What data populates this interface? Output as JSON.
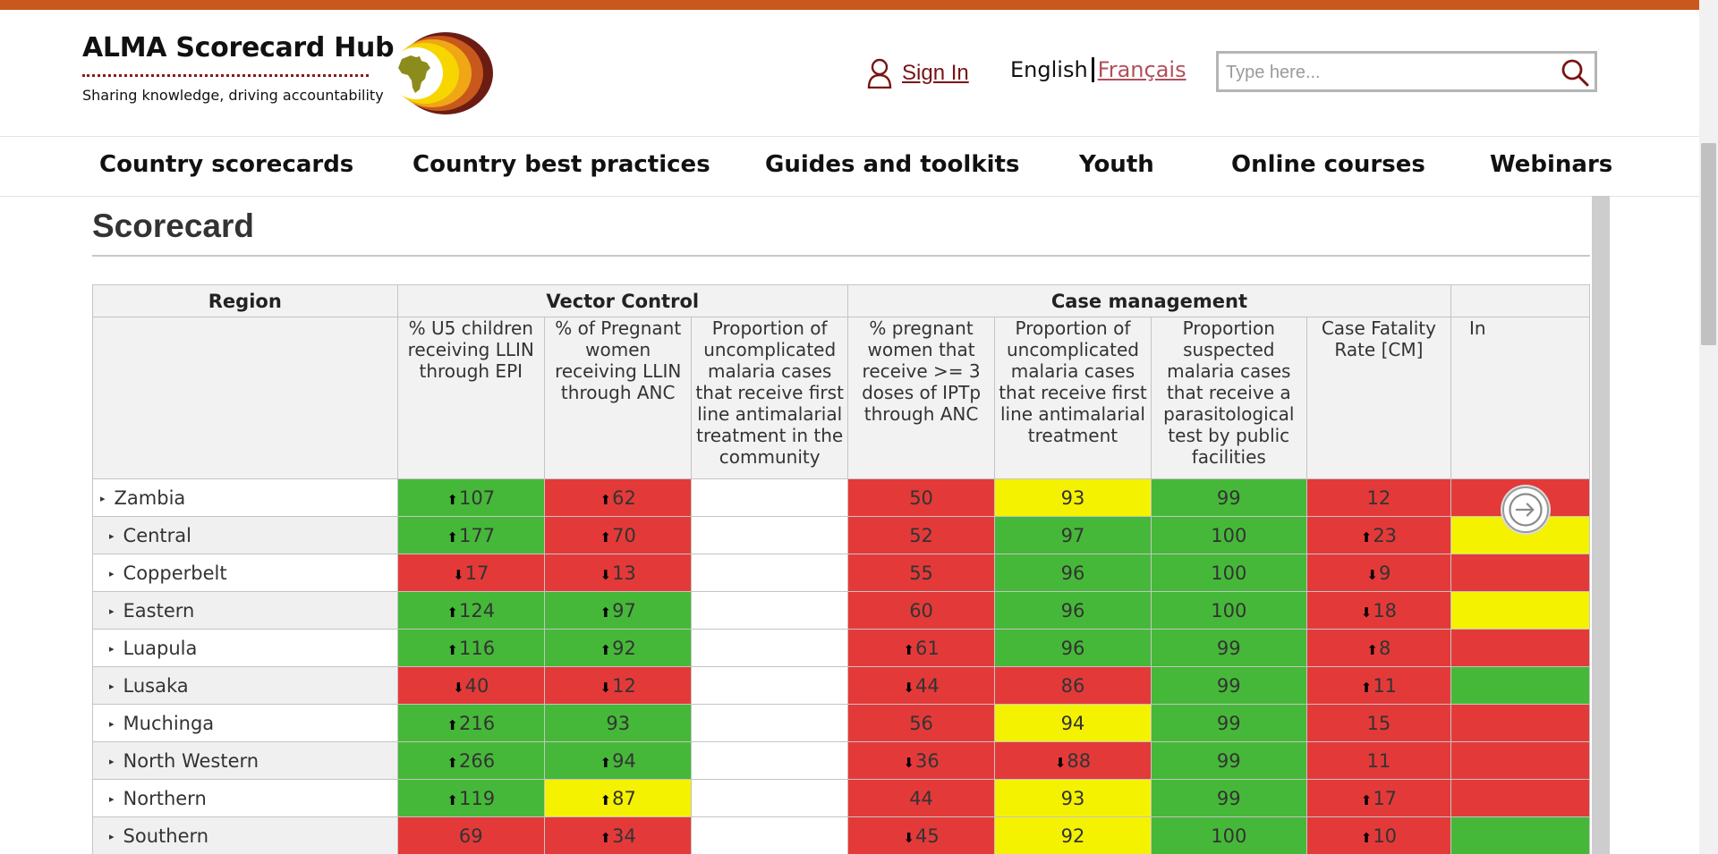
{
  "logo": {
    "title": "ALMA Scorecard Hub",
    "tagline": "Sharing knowledge, driving accountability",
    "ring_colors": [
      "#6b1d14",
      "#c9581d",
      "#f0a716",
      "#f7d600"
    ],
    "africa_color": "#8c8c1e"
  },
  "header": {
    "signin_label": "Sign In",
    "signin_icon": "user-icon",
    "lang_en": "English",
    "lang_fr": "Français",
    "search_placeholder": "Type here...",
    "search_icon": "search-icon"
  },
  "nav": {
    "items": [
      "Country scorecards",
      "Country best practices",
      "Guides and toolkits",
      "Youth",
      "Online courses",
      "Webinars"
    ]
  },
  "page": {
    "title": "Scorecard"
  },
  "scorecard": {
    "region_header": "Region",
    "groups": [
      {
        "label": "Vector Control",
        "span": 3
      },
      {
        "label": "Case management",
        "span": 4
      }
    ],
    "columns": [
      "% U5 children receiving LLIN through EPI",
      "% of Pregnant women receiving LLIN through ANC",
      "Proportion of uncomplicated malaria cases that receive first line antimalarial treatment in the community",
      "% pregnant women that receive >= 3 doses of IPTp through ANC",
      "Proportion of uncomplicated malaria cases that receive first line antimalarial treatment",
      "Proportion suspected malaria cases that receive a parasitological test by public facilities",
      "Case Fatality Rate [CM]",
      "In"
    ],
    "rows": [
      {
        "region": "Zambia",
        "level": 0,
        "cells": [
          {
            "v": "107",
            "c": "green",
            "a": "up"
          },
          {
            "v": "62",
            "c": "red",
            "a": "up"
          },
          {
            "v": "",
            "c": "white",
            "a": ""
          },
          {
            "v": "50",
            "c": "red",
            "a": ""
          },
          {
            "v": "93",
            "c": "yellow",
            "a": ""
          },
          {
            "v": "99",
            "c": "green",
            "a": ""
          },
          {
            "v": "12",
            "c": "red",
            "a": ""
          },
          {
            "v": "",
            "c": "red",
            "a": ""
          }
        ]
      },
      {
        "region": "Central",
        "level": 1,
        "cells": [
          {
            "v": "177",
            "c": "green",
            "a": "up"
          },
          {
            "v": "70",
            "c": "red",
            "a": "up"
          },
          {
            "v": "",
            "c": "white",
            "a": ""
          },
          {
            "v": "52",
            "c": "red",
            "a": ""
          },
          {
            "v": "97",
            "c": "green",
            "a": ""
          },
          {
            "v": "100",
            "c": "green",
            "a": ""
          },
          {
            "v": "23",
            "c": "red",
            "a": "up"
          },
          {
            "v": "",
            "c": "yellow",
            "a": ""
          }
        ]
      },
      {
        "region": "Copperbelt",
        "level": 1,
        "cells": [
          {
            "v": "17",
            "c": "red",
            "a": "down"
          },
          {
            "v": "13",
            "c": "red",
            "a": "down"
          },
          {
            "v": "",
            "c": "white",
            "a": ""
          },
          {
            "v": "55",
            "c": "red",
            "a": ""
          },
          {
            "v": "96",
            "c": "green",
            "a": ""
          },
          {
            "v": "100",
            "c": "green",
            "a": ""
          },
          {
            "v": "9",
            "c": "red",
            "a": "down"
          },
          {
            "v": "",
            "c": "red",
            "a": ""
          }
        ]
      },
      {
        "region": "Eastern",
        "level": 1,
        "cells": [
          {
            "v": "124",
            "c": "green",
            "a": "up"
          },
          {
            "v": "97",
            "c": "green",
            "a": "up"
          },
          {
            "v": "",
            "c": "white",
            "a": ""
          },
          {
            "v": "60",
            "c": "red",
            "a": ""
          },
          {
            "v": "96",
            "c": "green",
            "a": ""
          },
          {
            "v": "100",
            "c": "green",
            "a": ""
          },
          {
            "v": "18",
            "c": "red",
            "a": "down"
          },
          {
            "v": "",
            "c": "yellow",
            "a": ""
          }
        ]
      },
      {
        "region": "Luapula",
        "level": 1,
        "cells": [
          {
            "v": "116",
            "c": "green",
            "a": "up"
          },
          {
            "v": "92",
            "c": "green",
            "a": "up"
          },
          {
            "v": "",
            "c": "white",
            "a": ""
          },
          {
            "v": "61",
            "c": "red",
            "a": "up"
          },
          {
            "v": "96",
            "c": "green",
            "a": ""
          },
          {
            "v": "99",
            "c": "green",
            "a": ""
          },
          {
            "v": "8",
            "c": "red",
            "a": "up"
          },
          {
            "v": "",
            "c": "red",
            "a": ""
          }
        ]
      },
      {
        "region": "Lusaka",
        "level": 1,
        "cells": [
          {
            "v": "40",
            "c": "red",
            "a": "down"
          },
          {
            "v": "12",
            "c": "red",
            "a": "down"
          },
          {
            "v": "",
            "c": "white",
            "a": ""
          },
          {
            "v": "44",
            "c": "red",
            "a": "down"
          },
          {
            "v": "86",
            "c": "red",
            "a": ""
          },
          {
            "v": "99",
            "c": "green",
            "a": ""
          },
          {
            "v": "11",
            "c": "red",
            "a": "up"
          },
          {
            "v": "",
            "c": "green",
            "a": ""
          }
        ]
      },
      {
        "region": "Muchinga",
        "level": 1,
        "cells": [
          {
            "v": "216",
            "c": "green",
            "a": "up"
          },
          {
            "v": "93",
            "c": "green",
            "a": ""
          },
          {
            "v": "",
            "c": "white",
            "a": ""
          },
          {
            "v": "56",
            "c": "red",
            "a": ""
          },
          {
            "v": "94",
            "c": "yellow",
            "a": ""
          },
          {
            "v": "99",
            "c": "green",
            "a": ""
          },
          {
            "v": "15",
            "c": "red",
            "a": ""
          },
          {
            "v": "",
            "c": "red",
            "a": ""
          }
        ]
      },
      {
        "region": "North Western",
        "level": 1,
        "cells": [
          {
            "v": "266",
            "c": "green",
            "a": "up"
          },
          {
            "v": "94",
            "c": "green",
            "a": "up"
          },
          {
            "v": "",
            "c": "white",
            "a": ""
          },
          {
            "v": "36",
            "c": "red",
            "a": "down"
          },
          {
            "v": "88",
            "c": "red",
            "a": "down"
          },
          {
            "v": "99",
            "c": "green",
            "a": ""
          },
          {
            "v": "11",
            "c": "red",
            "a": ""
          },
          {
            "v": "",
            "c": "red",
            "a": ""
          }
        ]
      },
      {
        "region": "Northern",
        "level": 1,
        "cells": [
          {
            "v": "119",
            "c": "green",
            "a": "up"
          },
          {
            "v": "87",
            "c": "yellow",
            "a": "up"
          },
          {
            "v": "",
            "c": "white",
            "a": ""
          },
          {
            "v": "44",
            "c": "red",
            "a": ""
          },
          {
            "v": "93",
            "c": "yellow",
            "a": ""
          },
          {
            "v": "99",
            "c": "green",
            "a": ""
          },
          {
            "v": "17",
            "c": "red",
            "a": "up"
          },
          {
            "v": "",
            "c": "red",
            "a": ""
          }
        ]
      },
      {
        "region": "Southern",
        "level": 1,
        "cells": [
          {
            "v": "69",
            "c": "red",
            "a": ""
          },
          {
            "v": "34",
            "c": "red",
            "a": "up"
          },
          {
            "v": "",
            "c": "white",
            "a": ""
          },
          {
            "v": "45",
            "c": "red",
            "a": "down"
          },
          {
            "v": "92",
            "c": "yellow",
            "a": ""
          },
          {
            "v": "100",
            "c": "green",
            "a": ""
          },
          {
            "v": "10",
            "c": "red",
            "a": "up"
          },
          {
            "v": "",
            "c": "green",
            "a": ""
          }
        ]
      }
    ],
    "next_icon": "arrow-right-circle-icon"
  }
}
